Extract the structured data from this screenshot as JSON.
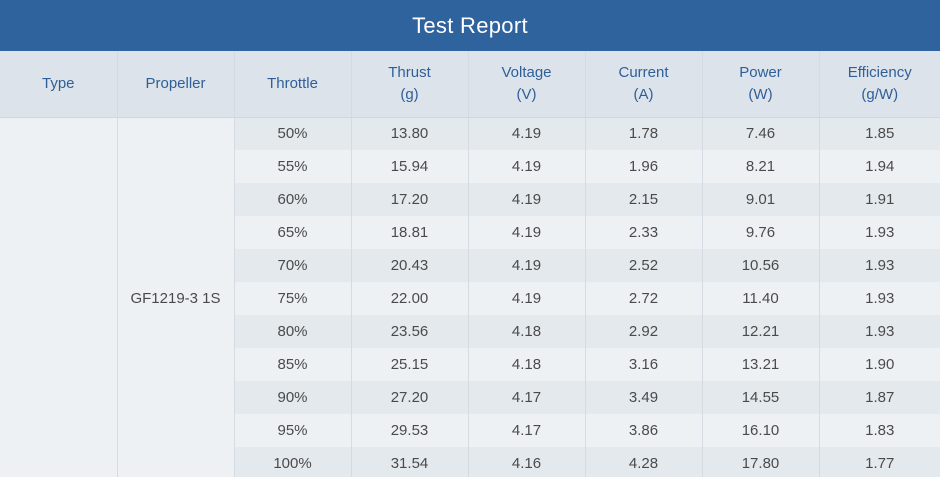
{
  "title": "Test Report",
  "headers": {
    "type": "Type",
    "propeller": "Propeller",
    "throttle": "Throttle",
    "thrust": "Thrust",
    "thrust_unit": "(g)",
    "voltage": "Voltage",
    "voltage_unit": "(V)",
    "current": "Current",
    "current_unit": "(A)",
    "power": "Power",
    "power_unit": "(W)",
    "efficiency": "Efficiency",
    "efficiency_unit": "(g/W)"
  },
  "type_value": "",
  "propeller_value": "GF1219-3  1S",
  "rows": [
    {
      "throttle": "50%",
      "thrust": "13.80",
      "voltage": "4.19",
      "current": "1.78",
      "power": "7.46",
      "efficiency": "1.85"
    },
    {
      "throttle": "55%",
      "thrust": "15.94",
      "voltage": "4.19",
      "current": "1.96",
      "power": "8.21",
      "efficiency": "1.94"
    },
    {
      "throttle": "60%",
      "thrust": "17.20",
      "voltage": "4.19",
      "current": "2.15",
      "power": "9.01",
      "efficiency": "1.91"
    },
    {
      "throttle": "65%",
      "thrust": "18.81",
      "voltage": "4.19",
      "current": "2.33",
      "power": "9.76",
      "efficiency": "1.93"
    },
    {
      "throttle": "70%",
      "thrust": "20.43",
      "voltage": "4.19",
      "current": "2.52",
      "power": "10.56",
      "efficiency": "1.93"
    },
    {
      "throttle": "75%",
      "thrust": "22.00",
      "voltage": "4.19",
      "current": "2.72",
      "power": "11.40",
      "efficiency": "1.93"
    },
    {
      "throttle": "80%",
      "thrust": "23.56",
      "voltage": "4.18",
      "current": "2.92",
      "power": "12.21",
      "efficiency": "1.93"
    },
    {
      "throttle": "85%",
      "thrust": "25.15",
      "voltage": "4.18",
      "current": "3.16",
      "power": "13.21",
      "efficiency": "1.90"
    },
    {
      "throttle": "90%",
      "thrust": "27.20",
      "voltage": "4.17",
      "current": "3.49",
      "power": "14.55",
      "efficiency": "1.87"
    },
    {
      "throttle": "95%",
      "thrust": "29.53",
      "voltage": "4.17",
      "current": "3.86",
      "power": "16.10",
      "efficiency": "1.83"
    },
    {
      "throttle": "100%",
      "thrust": "31.54",
      "voltage": "4.16",
      "current": "4.28",
      "power": "17.80",
      "efficiency": "1.77"
    }
  ],
  "colors": {
    "title_bar": "#2f639e",
    "header_bg": "#dde3ea",
    "header_text": "#2e5f98",
    "row_odd": "#e4e9ee",
    "row_even": "#eef1f4"
  }
}
